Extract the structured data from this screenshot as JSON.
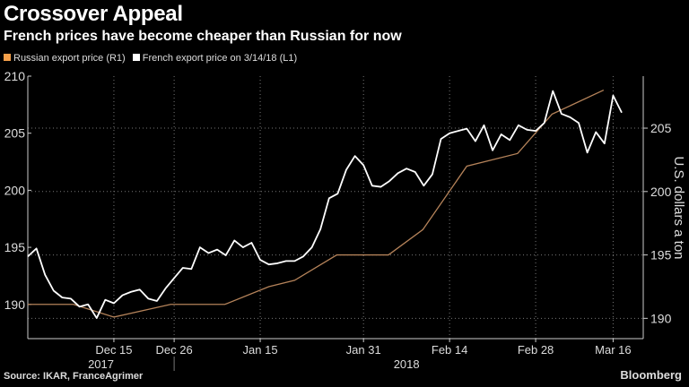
{
  "title": "Crossover Appeal",
  "subtitle": "French prices have become cheaper than Russian for now",
  "source": "Source: IKAR, FranceAgrimer",
  "brand": "Bloomberg",
  "colors": {
    "russian": "#f5a04a",
    "russian_line": "#b5835a",
    "french": "#ffffff",
    "grid": "#777777",
    "axis": "#cccccc"
  },
  "chart_data": {
    "type": "line",
    "title": "Crossover Appeal",
    "subtitle": "French prices have become cheaper than Russian for now",
    "legend": [
      "Russian export price (R1)",
      "French export price on 3/14/18 (L1)"
    ],
    "legend_placement": "top-left",
    "xlabel": "",
    "ylabel_right": "U.S. dollars a ton",
    "x_ticks": [
      {
        "index": 10,
        "label": "Dec 15"
      },
      {
        "index": 17,
        "label": "Dec 26"
      },
      {
        "index": 27,
        "label": "Jan 15"
      },
      {
        "index": 39,
        "label": "Jan 31"
      },
      {
        "index": 49,
        "label": "Feb 14"
      },
      {
        "index": 59,
        "label": "Feb 28"
      },
      {
        "index": 68,
        "label": "Mar 16"
      }
    ],
    "year_labels": [
      {
        "index": 8.5,
        "label": "2017"
      },
      {
        "index": 44,
        "label": "2018"
      }
    ],
    "xlim": [
      0,
      71.5
    ],
    "left_axis": {
      "ylim": [
        187,
        210
      ],
      "ticks": [
        190,
        195,
        200,
        205,
        210
      ]
    },
    "right_axis": {
      "ylim": [
        188.4,
        209.1
      ],
      "ticks": [
        190,
        195,
        200,
        205
      ]
    },
    "grid": true,
    "series": [
      {
        "name": "French export price on 3/14/18 (L1)",
        "axis": "left",
        "values": [
          194.2,
          194.9,
          192.6,
          191.2,
          190.6,
          190.5,
          189.8,
          190.0,
          188.8,
          190.4,
          190.1,
          190.8,
          191.1,
          191.3,
          190.5,
          190.3,
          191.4,
          192.3,
          193.2,
          193.1,
          195.0,
          194.5,
          194.8,
          194.3,
          195.6,
          195.0,
          195.4,
          193.9,
          193.5,
          193.6,
          193.8,
          193.8,
          194.2,
          195.0,
          196.6,
          199.3,
          199.7,
          201.8,
          203.0,
          202.2,
          200.4,
          200.3,
          200.8,
          201.5,
          201.9,
          201.6,
          200.4,
          201.4,
          204.5,
          205.0,
          205.2,
          205.4,
          204.3,
          205.7,
          203.5,
          204.9,
          204.4,
          205.7,
          205.3,
          205.2,
          205.9,
          208.7,
          206.7,
          206.4,
          205.9,
          203.3,
          205.1,
          204.1,
          208.3,
          206.8
        ]
      },
      {
        "name": "Russian export price (R1)",
        "axis": "right",
        "points": [
          [
            0,
            191.1
          ],
          [
            5.3,
            191.1
          ],
          [
            10,
            190.1
          ],
          [
            16.6,
            191.1
          ],
          [
            22.9,
            191.1
          ],
          [
            28,
            192.5
          ],
          [
            31,
            193.0
          ],
          [
            35.9,
            195.0
          ],
          [
            41.9,
            195.0
          ],
          [
            45.9,
            197.0
          ],
          [
            51,
            202.0
          ],
          [
            56.9,
            203.0
          ],
          [
            60.9,
            206.1
          ],
          [
            66.9,
            208.0
          ]
        ]
      }
    ]
  }
}
